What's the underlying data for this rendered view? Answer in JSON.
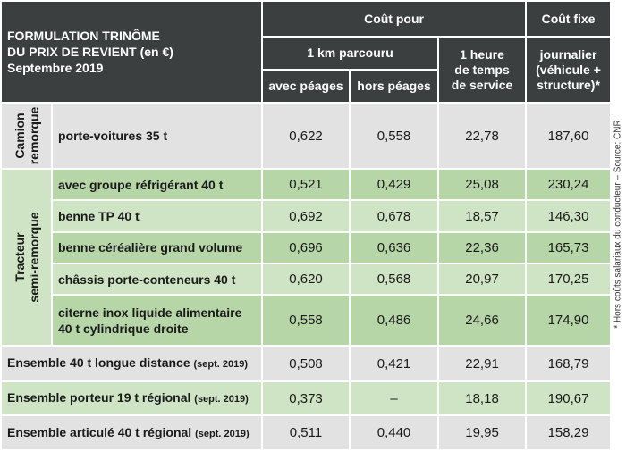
{
  "title": {
    "line1": "FORMULATION TRINÔME",
    "line2": "DU PRIX DE REVIENT (en €)",
    "line3": "Septembre 2019"
  },
  "headers": {
    "cout_pour": "Coût pour",
    "cout_fixe": "Coût fixe",
    "km_parcouru": "1 km parcouru",
    "heure_line1": "1 heure",
    "heure_line2": "de temps",
    "heure_line3": "de service",
    "journalier_line1": "journalier",
    "journalier_line2": "(véhicule +",
    "journalier_line3": "structure)*",
    "avec_peages": "avec péages",
    "hors_peages": "hors péages"
  },
  "groups": {
    "camion_line1": "Camion",
    "camion_line2": "remorque",
    "tracteur_line1": "Tracteur",
    "tracteur_line2": "semi-remorque"
  },
  "rows": [
    {
      "label": "porte-voitures 35 t",
      "avec": "0,622",
      "hors": "0,558",
      "heure": "22,78",
      "fixe": "187,60"
    },
    {
      "label": "avec groupe réfrigérant 40 t",
      "avec": "0,521",
      "hors": "0,429",
      "heure": "25,08",
      "fixe": "230,24"
    },
    {
      "label": "benne TP 40 t",
      "avec": "0,692",
      "hors": "0,678",
      "heure": "18,57",
      "fixe": "146,30"
    },
    {
      "label": "benne céréalière grand volume",
      "avec": "0,696",
      "hors": "0,636",
      "heure": "22,36",
      "fixe": "165,73"
    },
    {
      "label": "châssis porte-conteneurs 40 t",
      "avec": "0,620",
      "hors": "0,568",
      "heure": "20,97",
      "fixe": "170,25"
    },
    {
      "label_line1": "citerne inox liquide alimentaire",
      "label_line2": "40 t cylindrique droite",
      "avec": "0,558",
      "hors": "0,486",
      "heure": "24,66",
      "fixe": "174,90"
    },
    {
      "label": "Ensemble 40 t longue distance",
      "note": "(sept. 2019)",
      "avec": "0,508",
      "hors": "0,421",
      "heure": "22,91",
      "fixe": "168,79"
    },
    {
      "label": "Ensemble porteur 19 t régional",
      "note": "(sept. 2019)",
      "avec": "0,373",
      "hors": "–",
      "heure": "18,18",
      "fixe": "190,67"
    },
    {
      "label": "Ensemble articulé 40 t régional",
      "note": "(sept. 2019)",
      "avec": "0,511",
      "hors": "0,440",
      "heure": "19,95",
      "fixe": "158,29"
    }
  ],
  "side_note": "* Hors coûts salariaux du conducteur – Source: CNR",
  "colors": {
    "header_dark": "#3c3f40",
    "row_light_green": "#cfe4c4",
    "row_green": "#b6d6a8",
    "row_gray": "#e2e2e2"
  }
}
